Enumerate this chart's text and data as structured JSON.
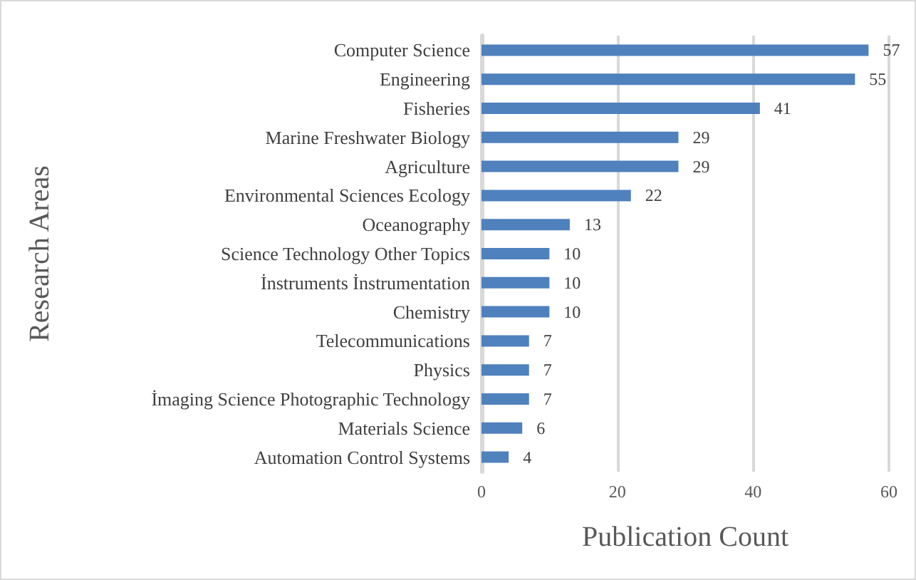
{
  "chart_data": {
    "type": "bar",
    "orientation": "horizontal",
    "xlabel": "Publication Count",
    "ylabel": "Research Areas",
    "categories": [
      "Computer Science",
      "Engineering",
      "Fisheries",
      "Marine Freshwater Biology",
      "Agriculture",
      "Environmental Sciences Ecology",
      "Oceanography",
      "Science Technology Other Topics",
      "İnstruments İnstrumentation",
      "Chemistry",
      "Telecommunications",
      "Physics",
      "İmaging Science Photographic Technology",
      "Materials Science",
      "Automation Control Systems"
    ],
    "values": [
      57,
      55,
      41,
      29,
      29,
      22,
      13,
      10,
      10,
      10,
      7,
      7,
      7,
      6,
      4
    ],
    "color": "#4f81bd",
    "xlim": [
      0,
      60
    ],
    "xticks": [
      0,
      20,
      40,
      60
    ],
    "grid": "x",
    "data_labels": true
  }
}
